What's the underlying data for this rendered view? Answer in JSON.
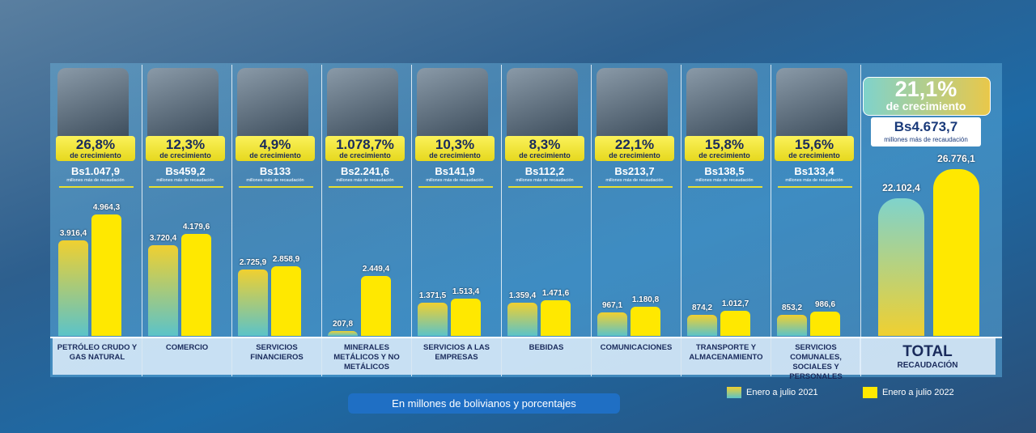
{
  "note": "En millones de bolivianos y porcentajes",
  "chart_data": [
    {
      "type": "bar",
      "categories": [
        "PETRÓLEO CRUDO Y GAS NATURAL",
        "COMERCIO",
        "SERVICIOS FINANCIEROS",
        "MINERALES METÁLICOS Y NO METÁLICOS",
        "SERVICIOS A LAS EMPRESAS",
        "BEBIDAS",
        "COMUNICACIONES",
        "TRANSPORTE Y ALMACENAMIENTO",
        "SERVICIOS COMUNALES, SOCIALES Y PERSONALES"
      ],
      "growth_labels": [
        "26,8%",
        "12,3%",
        "4,9%",
        "1.078,7%",
        "10,3%",
        "8,3%",
        "22,1%",
        "15,8%",
        "15,6%"
      ],
      "growth_caption": "de crecimiento",
      "increase_labels": [
        "Bs1.047,9",
        "Bs459,2",
        "Bs133",
        "Bs2.241,6",
        "Bs141,9",
        "Bs112,2",
        "Bs213,7",
        "Bs138,5",
        "Bs133,4"
      ],
      "increase_caption": "millones más de recaudación",
      "series": [
        {
          "name": "Enero a julio 2021",
          "color": "#f0d030",
          "values": [
            3916.4,
            3720.4,
            2725.9,
            207.8,
            1371.5,
            1359.4,
            967.1,
            874.2,
            853.2
          ],
          "value_labels": [
            "3.916,4",
            "3.720,4",
            "2.725,9",
            "207,8",
            "1.371,5",
            "1.359,4",
            "967,1",
            "874,2",
            "853,2"
          ]
        },
        {
          "name": "Enero a julio 2022",
          "color": "#ffe800",
          "values": [
            4964.3,
            4179.6,
            2858.9,
            2449.4,
            1513.4,
            1471.6,
            1180.8,
            1012.7,
            986.6
          ],
          "value_labels": [
            "4.964,3",
            "4.179,6",
            "2.858,9",
            "2.449,4",
            "1.513,4",
            "1.471,6",
            "1.180,8",
            "1.012,7",
            "986,6"
          ]
        }
      ]
    },
    {
      "type": "bar",
      "title": "TOTAL",
      "subtitle": "RECAUDACIÓN",
      "growth_label": "21,1%",
      "growth_caption": "de crecimiento",
      "increase_label": "Bs4.673,7",
      "increase_caption": "millones más de recaudación",
      "series": [
        {
          "color": "#f0d030",
          "values": [
            22102.4
          ],
          "value_labels": [
            "22.102,4"
          ]
        },
        {
          "color": "#ffe800",
          "values": [
            26776.1
          ],
          "value_labels": [
            "26.776,1"
          ]
        }
      ]
    }
  ]
}
